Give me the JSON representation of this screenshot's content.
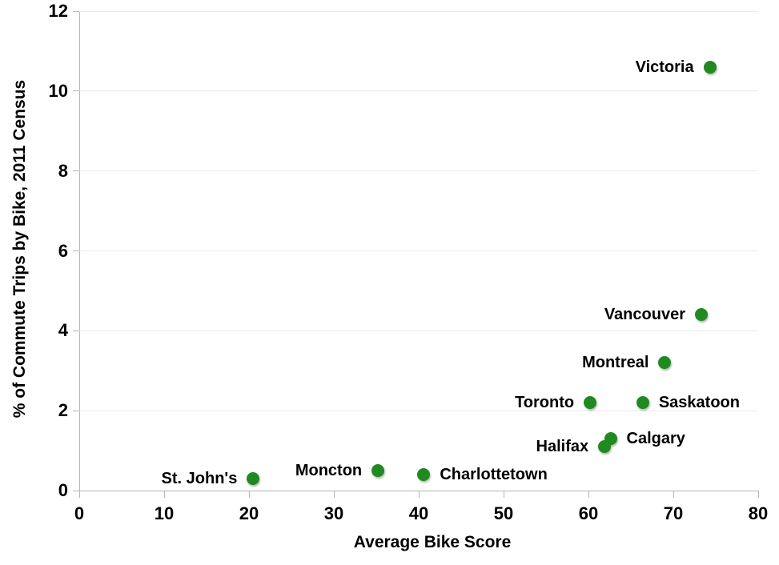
{
  "chart_data": {
    "type": "scatter",
    "title": "",
    "xlabel": "Average Bike Score",
    "ylabel": "% of Commute Trips by Bike, 2011 Census",
    "xlim": [
      0,
      80
    ],
    "ylim": [
      0,
      12
    ],
    "xticks": [
      0,
      10,
      20,
      30,
      40,
      50,
      60,
      70,
      80
    ],
    "yticks": [
      0,
      2,
      4,
      6,
      8,
      10,
      12
    ],
    "grid": "horizontal-only",
    "legend_position": "none",
    "point_color": "#1e8b1e",
    "axis_color": "#b5b5b5",
    "gridline_color": "#ebebeb",
    "points": [
      {
        "label": "Victoria",
        "x": 74.3,
        "y": 10.6,
        "label_side": "left"
      },
      {
        "label": "Vancouver",
        "x": 73.3,
        "y": 4.4,
        "label_side": "left"
      },
      {
        "label": "Montreal",
        "x": 69.0,
        "y": 3.2,
        "label_side": "left"
      },
      {
        "label": "Toronto",
        "x": 60.2,
        "y": 2.2,
        "label_side": "left"
      },
      {
        "label": "Saskatoon",
        "x": 66.4,
        "y": 2.2,
        "label_side": "right"
      },
      {
        "label": "Calgary",
        "x": 62.6,
        "y": 1.3,
        "label_side": "right"
      },
      {
        "label": "Halifax",
        "x": 61.9,
        "y": 1.1,
        "label_side": "left"
      },
      {
        "label": "Charlottetown",
        "x": 40.6,
        "y": 0.4,
        "label_side": "right"
      },
      {
        "label": "Moncton",
        "x": 35.2,
        "y": 0.5,
        "label_side": "left"
      },
      {
        "label": "St. John's",
        "x": 20.5,
        "y": 0.3,
        "label_side": "left"
      }
    ]
  }
}
